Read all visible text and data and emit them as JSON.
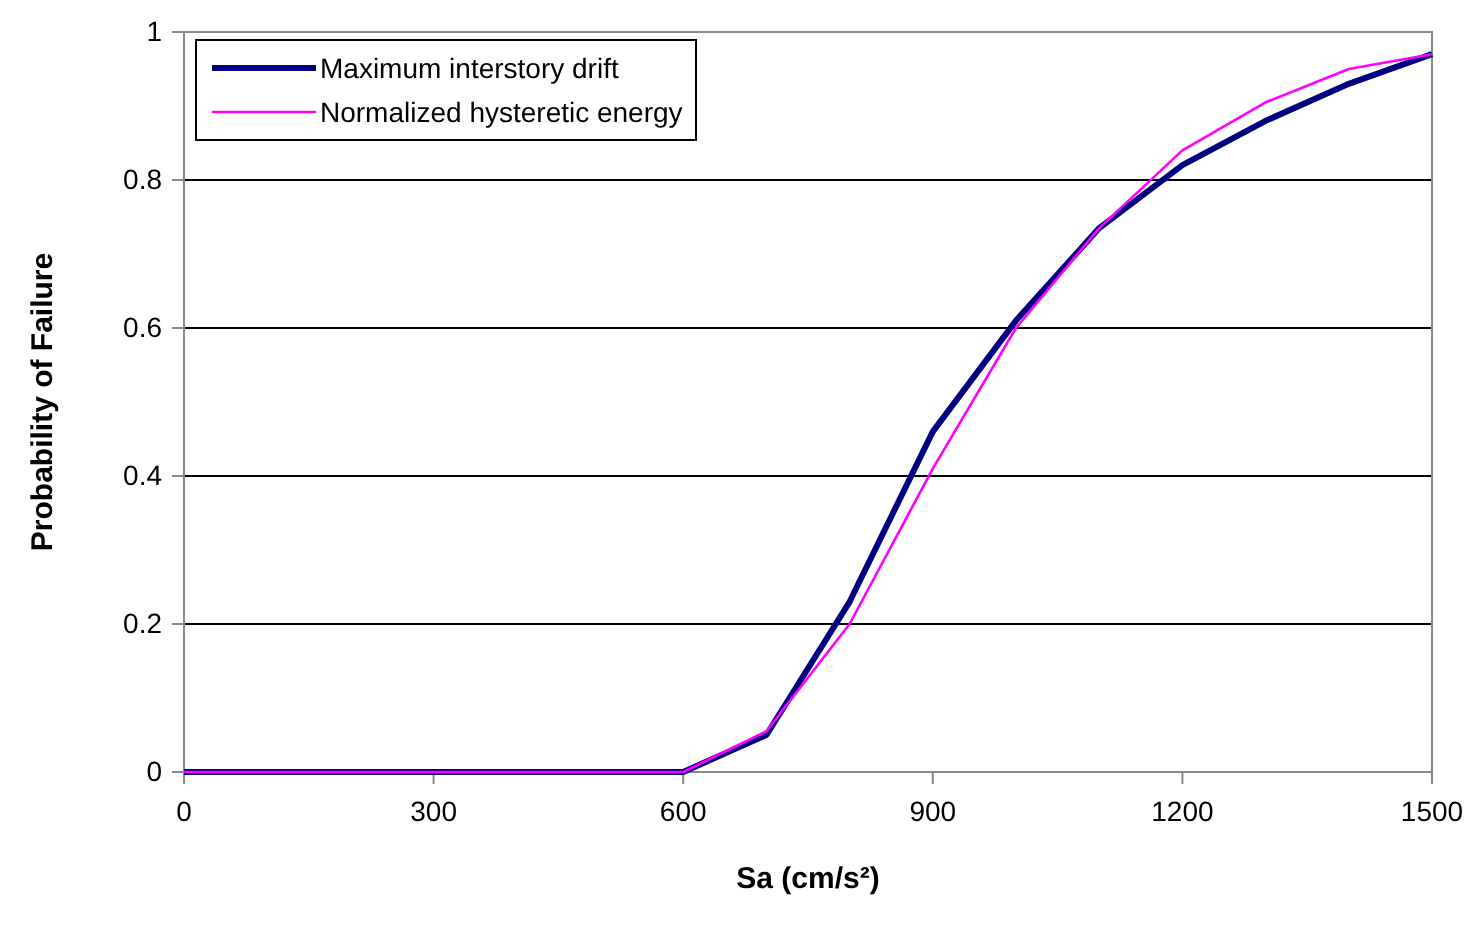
{
  "chart_data": {
    "type": "line",
    "xlabel": "Sa (cm/s²)",
    "ylabel": "Probability of Failure",
    "x": [
      0,
      100,
      200,
      300,
      400,
      500,
      600,
      700,
      800,
      900,
      1000,
      1100,
      1200,
      1300,
      1400,
      1500
    ],
    "series": [
      {
        "name": "Maximum interstory drift",
        "color": "#000080",
        "values": [
          0,
          0,
          0,
          0,
          0,
          0,
          0,
          0.05,
          0.23,
          0.46,
          0.61,
          0.735,
          0.82,
          0.88,
          0.93,
          0.97
        ]
      },
      {
        "name": "Normalized hysteretic energy",
        "color": "#ff00ff",
        "values": [
          0,
          0,
          0,
          0,
          0,
          0,
          0,
          0.055,
          0.2,
          0.41,
          0.6,
          0.735,
          0.84,
          0.905,
          0.95,
          0.97
        ]
      }
    ],
    "xlim": [
      0,
      1500
    ],
    "xticks": [
      0,
      300,
      600,
      900,
      1200,
      1500
    ],
    "ylim": [
      0,
      1
    ],
    "yticks": [
      0,
      0.2,
      0.4,
      0.6,
      0.8,
      1
    ],
    "grid": "y",
    "legend": "top left",
    "marker": "none",
    "line_style": "solid"
  }
}
